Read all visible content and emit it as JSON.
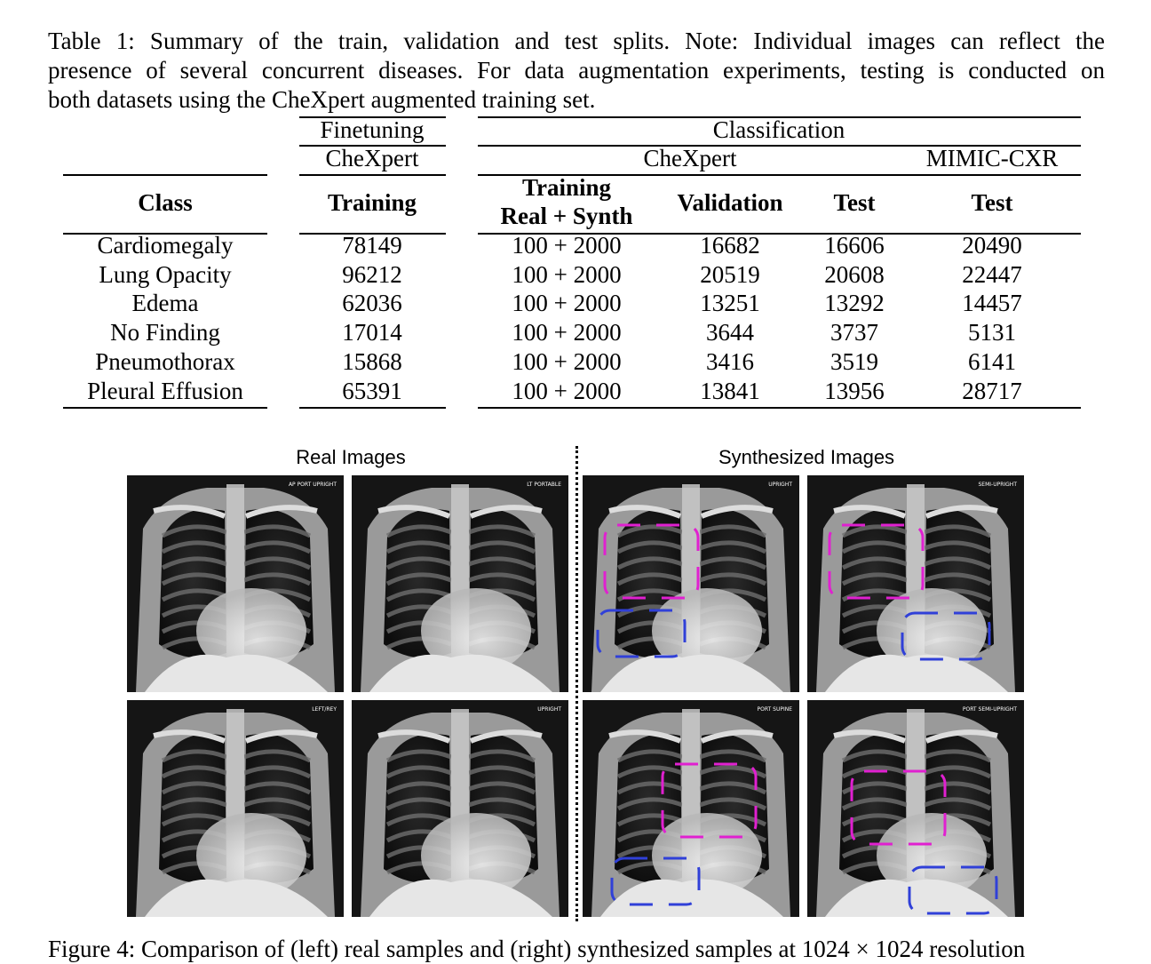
{
  "caption": {
    "line1": "Table 1: Summary of the train, validation and test splits. Note: Individual images can reflect the",
    "line2": "presence of several concurrent diseases. For data augmentation experiments, testing is conducted on",
    "line3": "both datasets using the CheXpert augmented training set."
  },
  "table": {
    "group_finetuning": "Finetuning",
    "group_classification": "Classification",
    "sub_chexpert_ft": "CheXpert",
    "sub_chexpert_cls": "CheXpert",
    "sub_mimic": "MIMIC-CXR",
    "headers": {
      "class": "Class",
      "training": "Training",
      "training_synth_1": "Training",
      "training_synth_2": "Real + Synth",
      "validation": "Validation",
      "test": "Test",
      "mimic_test": "Test"
    },
    "rows": [
      [
        "Cardiomegaly",
        "78149",
        "100 + 2000",
        "16682",
        "16606",
        "20490"
      ],
      [
        "Lung Opacity",
        "96212",
        "100 + 2000",
        "20519",
        "20608",
        "22447"
      ],
      [
        "Edema",
        "62036",
        "100 + 2000",
        "13251",
        "13292",
        "14457"
      ],
      [
        "No Finding",
        "17014",
        "100 + 2000",
        "3644",
        "3737",
        "5131"
      ],
      [
        "Pneumothorax",
        "15868",
        "100 + 2000",
        "3416",
        "3519",
        "6141"
      ],
      [
        "Pleural Effusion",
        "65391",
        "100 + 2000",
        "13841",
        "13956",
        "28717"
      ]
    ]
  },
  "figure": {
    "left_label": "Real Images",
    "right_label": "Synthesized Images",
    "images": [
      {
        "marker": "AP PORT UPRIGHT"
      },
      {
        "marker": "LT PORTABLE"
      },
      {
        "marker": "UPRIGHT"
      },
      {
        "marker": "SEMI-UPRIGHT"
      },
      {
        "marker": "LEFT/REY"
      },
      {
        "marker": "UPRIGHT"
      },
      {
        "marker": "PORT SUPINE"
      },
      {
        "marker": "PORT SEMI-UPRIGHT"
      }
    ],
    "box_colors": {
      "magenta": "#e020d0",
      "blue": "#3040d8"
    },
    "caption_partial": "Figure 4: Comparison of (left) real samples and (right) synthesized samples at 1024 × 1024 resolution"
  }
}
